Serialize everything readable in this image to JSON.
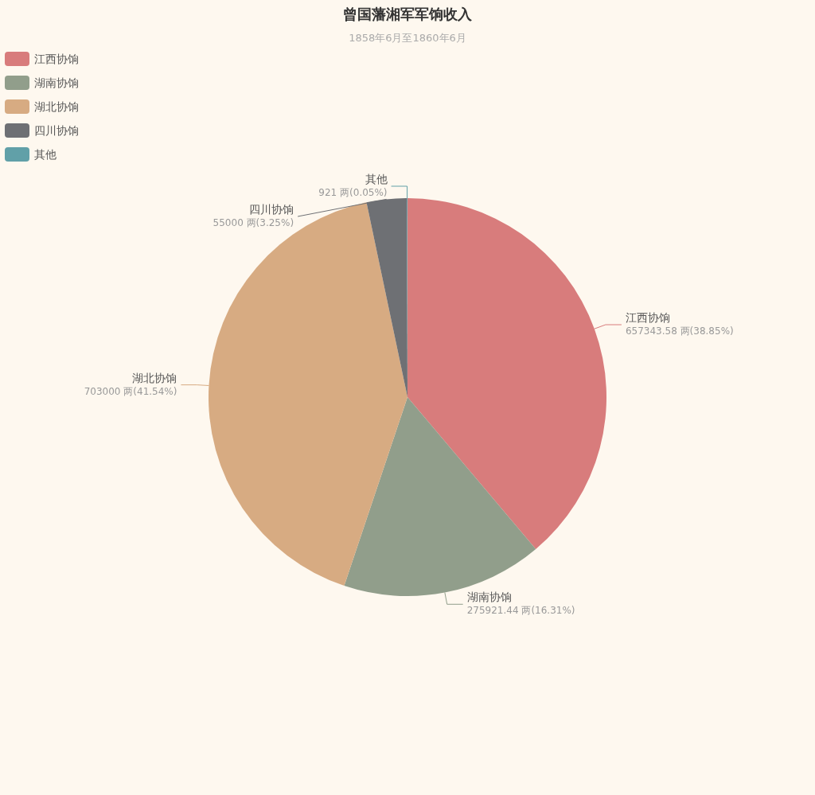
{
  "chart_data": {
    "type": "pie",
    "title": "曾国藩湘军军饷收入",
    "subtitle": "1858年6月至1860年6月",
    "categories": [
      "江西协饷",
      "湖南协饷",
      "湖北协饷",
      "四川协饷",
      "其他"
    ],
    "values": [
      657343.58,
      275921.44,
      703000,
      55000,
      921
    ],
    "colors": [
      "#d87c7c",
      "#919e8b",
      "#d7ab82",
      "#6e7074",
      "#61a0a8"
    ],
    "value_labels": [
      "657343.58 两(38.85%)",
      "275921.44 两(16.31%)",
      "703000 两(41.54%)",
      "55000 两(3.25%)",
      "921 两(0.05%)"
    ],
    "legend": "top left"
  }
}
